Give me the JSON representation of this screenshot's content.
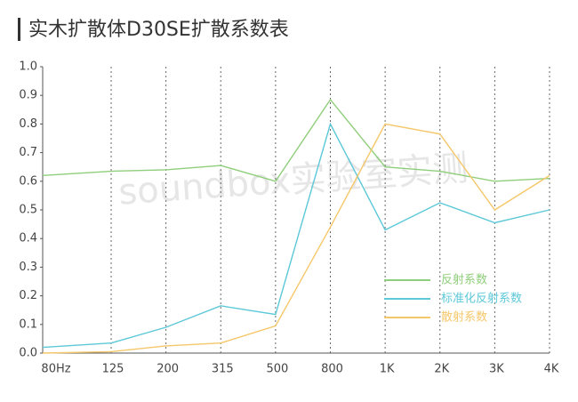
{
  "chart_data": {
    "type": "line",
    "title": "实木扩散体D30SE扩散系数表",
    "watermark": "soundbox实验室实测",
    "categories": [
      "80Hz",
      "125",
      "200",
      "315",
      "500",
      "800",
      "1K",
      "2K",
      "3K",
      "4K"
    ],
    "series": [
      {
        "name": "反射系数",
        "color": "#8fce7a",
        "values": [
          0.62,
          0.635,
          0.64,
          0.655,
          0.6,
          0.885,
          0.65,
          0.635,
          0.6,
          0.61
        ]
      },
      {
        "name": "标准化反射系数",
        "color": "#5cc8d8",
        "values": [
          0.02,
          0.035,
          0.09,
          0.165,
          0.135,
          0.8,
          0.43,
          0.525,
          0.455,
          0.5
        ]
      },
      {
        "name": "散射系数",
        "color": "#f5c76a",
        "values": [
          0,
          0.005,
          0.025,
          0.035,
          0.095,
          0.44,
          0.8,
          0.765,
          0.5,
          0.62
        ]
      }
    ],
    "ylim": [
      0,
      1
    ],
    "yticks": [
      {
        "value": 0,
        "label": "0.0"
      },
      0.1,
      0.2,
      0.3,
      0.4,
      0.5,
      0.6,
      0.7,
      0.8,
      0.9,
      {
        "value": 1,
        "label": "1.0"
      }
    ],
    "grid": "vertical",
    "legend": "lower-right"
  }
}
